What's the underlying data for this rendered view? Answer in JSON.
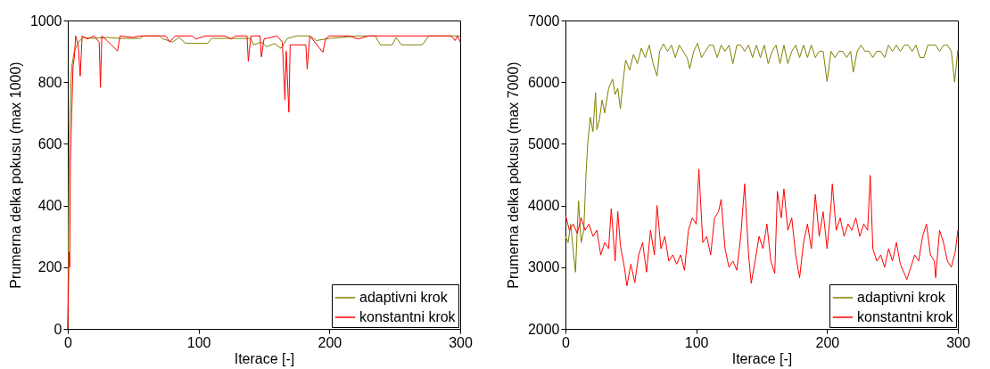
{
  "chart_data": [
    {
      "type": "line",
      "xlabel": "Iterace [-]",
      "ylabel": "Prumerna delka pokusu (max 1000)",
      "xlim": [
        0,
        300
      ],
      "xticks": [
        0,
        100,
        200,
        300
      ],
      "ylim": [
        0,
        1000
      ],
      "yticks": [
        0,
        200,
        400,
        600,
        800,
        1000
      ],
      "grid": false,
      "legend": "bottom right",
      "series": [
        {
          "name": "adaptivni krok",
          "color": "#808000",
          "x": [
            0,
            1,
            2,
            3,
            5,
            8,
            12,
            20,
            30,
            40,
            55,
            58,
            70,
            72,
            80,
            85,
            90,
            107,
            110,
            140,
            142,
            148,
            152,
            158,
            163,
            168,
            175,
            185,
            190,
            200,
            210,
            220,
            235,
            239,
            248,
            251,
            255,
            271,
            276,
            300
          ],
          "values": [
            0,
            600,
            750,
            850,
            900,
            930,
            945,
            942,
            945,
            942,
            942,
            950,
            950,
            942,
            930,
            945,
            926,
            926,
            942,
            942,
            921,
            930,
            915,
            925,
            910,
            942,
            950,
            950,
            935,
            942,
            945,
            950,
            950,
            921,
            921,
            945,
            921,
            921,
            950,
            950
          ]
        },
        {
          "name": "konstantni krok",
          "color": "#ff0000",
          "x": [
            0,
            0.5,
            1,
            1.5,
            2,
            3,
            4,
            5,
            6,
            8,
            9.5,
            11,
            15,
            20,
            24,
            25,
            26,
            30,
            38,
            40,
            50,
            55,
            75,
            78,
            82,
            95,
            98,
            105,
            120,
            125,
            128,
            137,
            138,
            140,
            147,
            148,
            150,
            160,
            164,
            166,
            167,
            169,
            170,
            182,
            183,
            185,
            195,
            197,
            200,
            215,
            222,
            230,
            293,
            296,
            298,
            300
          ],
          "values": [
            0,
            130,
            250,
            200,
            540,
            700,
            850,
            880,
            950,
            920,
            820,
            950,
            940,
            950,
            930,
            783,
            950,
            935,
            901,
            950,
            945,
            950,
            950,
            930,
            950,
            950,
            940,
            950,
            950,
            940,
            950,
            950,
            868,
            950,
            950,
            882,
            940,
            950,
            930,
            742,
            900,
            703,
            921,
            921,
            843,
            950,
            897,
            940,
            950,
            950,
            940,
            950,
            950,
            935,
            950,
            930
          ]
        }
      ]
    },
    {
      "type": "line",
      "xlabel": "Iterace [-]",
      "ylabel": "Prumerna delka pokusu (max 7000)",
      "xlim": [
        0,
        300
      ],
      "xticks": [
        0,
        100,
        200,
        300
      ],
      "ylim": [
        2000,
        7000
      ],
      "yticks": [
        2000,
        3000,
        4000,
        5000,
        6000,
        7000
      ],
      "grid": false,
      "legend": "bottom right",
      "series": [
        {
          "name": "adaptivni krok",
          "color": "#808000",
          "x": [
            0,
            2,
            4,
            6,
            7.7,
            9,
            10,
            12,
            14,
            15.7,
            17,
            19,
            21,
            23,
            24,
            26,
            28,
            30,
            33,
            36,
            38,
            40,
            42,
            44,
            46,
            49,
            52,
            55,
            58,
            61,
            64,
            67,
            70,
            72,
            75,
            78,
            81,
            84,
            87,
            90,
            93,
            95,
            98,
            101,
            104,
            107,
            110,
            113,
            116,
            119,
            122,
            125,
            128,
            131,
            134,
            137,
            140,
            143,
            146,
            149,
            152,
            155,
            158,
            161,
            164,
            167,
            170,
            173,
            176,
            179,
            182,
            185,
            188,
            191,
            194,
            197,
            200,
            203,
            206,
            209,
            212,
            215,
            218,
            220,
            223,
            226,
            229,
            232,
            235,
            238,
            241,
            244,
            247,
            250,
            253,
            256,
            259,
            262,
            265,
            268,
            271,
            274,
            277,
            280,
            283,
            286,
            289,
            292,
            295,
            297.5,
            300
          ],
          "values": [
            3500,
            3400,
            3700,
            3250,
            2920,
            3600,
            4080,
            3400,
            3600,
            4500,
            5000,
            5430,
            5200,
            5830,
            5230,
            5400,
            5710,
            5500,
            5900,
            6050,
            5800,
            5900,
            5570,
            6000,
            6360,
            6200,
            6450,
            6300,
            6550,
            6400,
            6600,
            6300,
            6100,
            6500,
            6620,
            6500,
            6600,
            6400,
            6600,
            6500,
            6400,
            6220,
            6500,
            6630,
            6400,
            6500,
            6600,
            6600,
            6400,
            6600,
            6500,
            6600,
            6300,
            6600,
            6600,
            6500,
            6600,
            6400,
            6600,
            6400,
            6600,
            6300,
            6500,
            6600,
            6300,
            6600,
            6300,
            6500,
            6600,
            6400,
            6600,
            6400,
            6600,
            6400,
            6500,
            6500,
            6010,
            6500,
            6400,
            6500,
            6500,
            6400,
            6500,
            6160,
            6500,
            6600,
            6500,
            6500,
            6400,
            6500,
            6500,
            6400,
            6600,
            6500,
            6600,
            6500,
            6600,
            6600,
            6500,
            6600,
            6400,
            6400,
            6600,
            6600,
            6600,
            6500,
            6600,
            6600,
            6500,
            6000,
            6530
          ]
        },
        {
          "name": "konstantni krok",
          "color": "#ff0000",
          "x": [
            0,
            3,
            6,
            9,
            12,
            15,
            18,
            21,
            24,
            27,
            30,
            33,
            35,
            38,
            40,
            42,
            45,
            47,
            50,
            53,
            56,
            59,
            62,
            65,
            68,
            70,
            73,
            76,
            79,
            82,
            85,
            88,
            91,
            94,
            97,
            100,
            102,
            105,
            108,
            111,
            114,
            117,
            119,
            122,
            125,
            128,
            131,
            134,
            137,
            140,
            142,
            145,
            148,
            151,
            154,
            157,
            160,
            162,
            165,
            167,
            170,
            173,
            176,
            179,
            182,
            185,
            188,
            191,
            194,
            197,
            200,
            203,
            204,
            207,
            210,
            213,
            216,
            219,
            222,
            225,
            228,
            231,
            233,
            235,
            238,
            241,
            244,
            247,
            250,
            253,
            256,
            259,
            261,
            264,
            267,
            270,
            273,
            276,
            279,
            282,
            283,
            286,
            289,
            292,
            295,
            298,
            300
          ],
          "values": [
            3850,
            3600,
            3700,
            3550,
            3800,
            3600,
            3700,
            3500,
            3600,
            3200,
            3400,
            3300,
            3950,
            3100,
            3900,
            3350,
            3000,
            2700,
            3050,
            2750,
            3200,
            3400,
            2920,
            3600,
            3200,
            4000,
            3300,
            3500,
            3100,
            3200,
            3050,
            3200,
            2950,
            3600,
            3800,
            3700,
            4590,
            3400,
            3500,
            3200,
            3800,
            3900,
            4100,
            3300,
            3000,
            3100,
            2950,
            3500,
            4350,
            3200,
            2740,
            3100,
            3500,
            3300,
            3700,
            3100,
            2900,
            4230,
            3800,
            4270,
            3600,
            3800,
            3200,
            2830,
            3400,
            3700,
            3300,
            4180,
            3500,
            3900,
            3300,
            4000,
            4350,
            3600,
            3800,
            3500,
            3700,
            3600,
            3800,
            3500,
            3700,
            3600,
            4490,
            3300,
            3100,
            3200,
            3000,
            3300,
            3100,
            3400,
            3050,
            2900,
            2800,
            3000,
            3200,
            3100,
            3500,
            3700,
            3200,
            3100,
            2830,
            3600,
            3400,
            3100,
            3000,
            3250,
            3600
          ]
        }
      ]
    }
  ]
}
